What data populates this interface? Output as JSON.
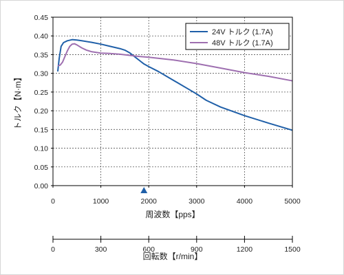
{
  "chart_data": {
    "type": "line",
    "xlabel": "周波数【pps】",
    "ylabel": "トルク【N·m】",
    "secondary_xlabel": "回転数【r/min】",
    "xlim": [
      0,
      5000
    ],
    "ylim": [
      0,
      0.45
    ],
    "secondary_xlim": [
      0,
      1500
    ],
    "x_ticks": [
      0,
      1000,
      2000,
      3000,
      4000,
      5000
    ],
    "x_tick_labels": [
      "0",
      "1000",
      "2000",
      "3000",
      "4000",
      "5000"
    ],
    "y_ticks": [
      0,
      0.05,
      0.1,
      0.15,
      0.2,
      0.25,
      0.3,
      0.35,
      0.4,
      0.45
    ],
    "y_tick_labels": [
      "0.00",
      "0.05",
      "0.10",
      "0.15",
      "0.20",
      "0.25",
      "0.30",
      "0.35",
      "0.40",
      "0.45"
    ],
    "secondary_x_ticks": [
      0,
      300,
      600,
      900,
      1200,
      1500
    ],
    "secondary_x_tick_labels": [
      "0",
      "300",
      "600",
      "900",
      "1200",
      "1500"
    ],
    "grid": "dashed",
    "legend_position": "top-right",
    "marker": {
      "x": 1900,
      "shape": "triangle"
    },
    "series": [
      {
        "name": "24V トルク (1.7A)",
        "color": "#1f5fa8",
        "x": [
          100,
          130,
          170,
          220,
          300,
          400,
          500,
          600,
          800,
          1000,
          1200,
          1400,
          1500,
          1600,
          1700,
          1800,
          1900,
          2000,
          2200,
          2400,
          2600,
          2800,
          3000,
          3200,
          3500,
          4000,
          4500,
          5000
        ],
        "y": [
          0.305,
          0.34,
          0.372,
          0.382,
          0.387,
          0.39,
          0.389,
          0.387,
          0.383,
          0.378,
          0.372,
          0.366,
          0.362,
          0.355,
          0.345,
          0.335,
          0.325,
          0.318,
          0.305,
          0.29,
          0.275,
          0.26,
          0.245,
          0.228,
          0.21,
          0.187,
          0.167,
          0.148
        ]
      },
      {
        "name": "48V トルク (1.7A)",
        "color": "#9e6fb0",
        "x": [
          100,
          150,
          200,
          250,
          300,
          350,
          400,
          450,
          500,
          600,
          700,
          800,
          1000,
          1200,
          1400,
          1600,
          1800,
          2000,
          2500,
          3000,
          3500,
          4000,
          4500,
          5000
        ],
        "y": [
          0.32,
          0.322,
          0.33,
          0.345,
          0.36,
          0.372,
          0.378,
          0.379,
          0.376,
          0.368,
          0.362,
          0.358,
          0.354,
          0.353,
          0.351,
          0.348,
          0.345,
          0.343,
          0.336,
          0.326,
          0.314,
          0.302,
          0.292,
          0.28
        ]
      }
    ]
  }
}
